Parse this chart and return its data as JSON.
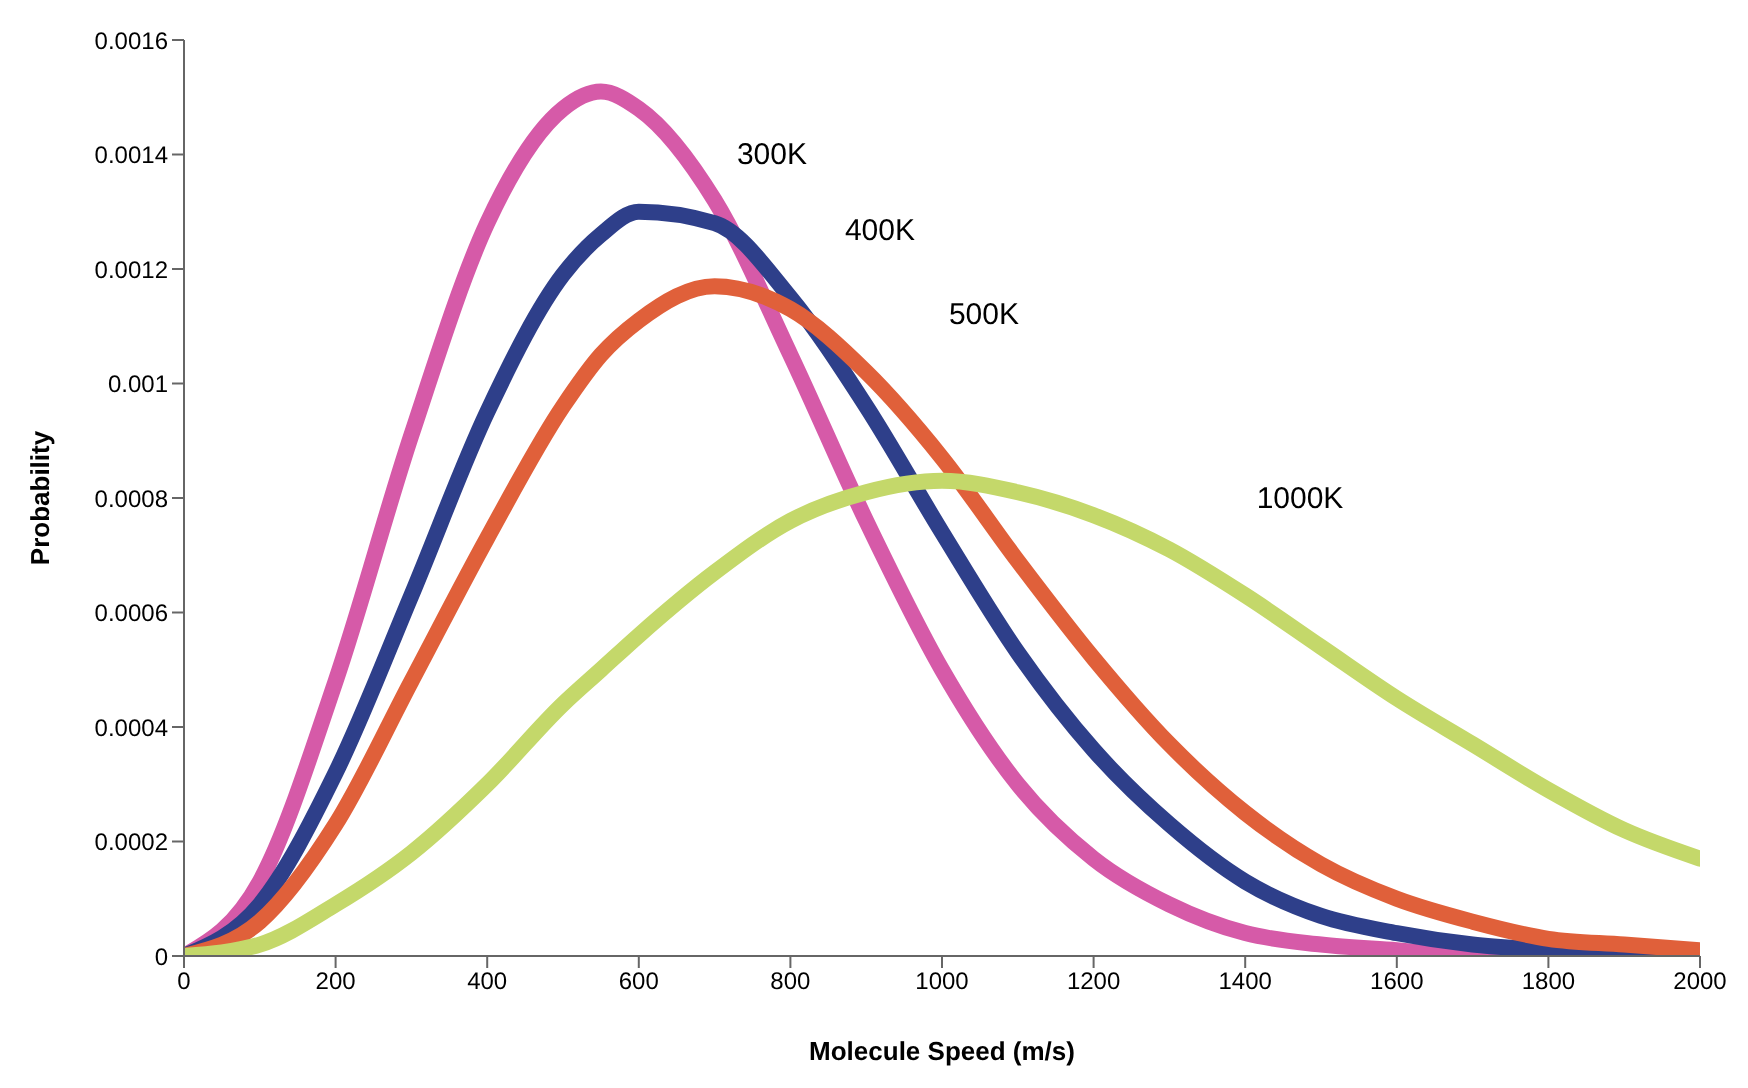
{
  "chart_data": {
    "type": "line",
    "xlabel": "Molecule Speed (m/s)",
    "ylabel": "Probability",
    "x": [
      0,
      100,
      200,
      300,
      400,
      500,
      550,
      600,
      700,
      800,
      900,
      1000,
      1100,
      1200,
      1300,
      1400,
      1500,
      1600,
      1700,
      1800,
      1900,
      2000
    ],
    "series": [
      {
        "name": "300K",
        "color": "#d65aa8",
        "values": [
          0,
          0.00013,
          0.00048,
          0.00091,
          0.00128,
          0.00148,
          0.00151,
          0.00148,
          0.00132,
          0.00105,
          0.00076,
          0.0005,
          0.0003,
          0.00017,
          9e-05,
          4e-05,
          2e-05,
          1e-05,
          0,
          0,
          null,
          null
        ]
      },
      {
        "name": "400K",
        "color": "#2e3f8a",
        "values": [
          0,
          9e-05,
          0.00032,
          0.00063,
          0.00095,
          0.00119,
          0.00126,
          0.0013,
          0.00128,
          0.00115,
          0.00096,
          0.00074,
          0.00053,
          0.00036,
          0.00023,
          0.00013,
          7e-05,
          4e-05,
          2e-05,
          1e-05,
          0,
          0
        ]
      },
      {
        "name": "500K",
        "color": "#e0603a",
        "values": [
          0,
          6e-05,
          0.00023,
          0.00048,
          0.00073,
          0.00096,
          0.00105,
          0.00111,
          0.00117,
          0.00113,
          0.00102,
          0.00087,
          0.00069,
          0.00052,
          0.00037,
          0.00025,
          0.00016,
          0.0001,
          6e-05,
          3e-05,
          2e-05,
          1e-05
        ]
      },
      {
        "name": "1000K",
        "color": "#c4d86a",
        "values": [
          0,
          2e-05,
          9e-05,
          0.00018,
          0.0003,
          0.00044,
          0.0005,
          0.00056,
          0.00067,
          0.00076,
          0.00081,
          0.00083,
          0.00081,
          0.00077,
          0.00071,
          0.00063,
          0.00054,
          0.00045,
          0.00037,
          0.00029,
          0.00022,
          0.00017
        ]
      }
    ],
    "xlim": [
      0,
      2000
    ],
    "xticks": [
      0,
      200,
      400,
      600,
      800,
      1000,
      1200,
      1400,
      1600,
      1800,
      2000
    ],
    "ylim": [
      0,
      0.0016
    ],
    "yticks": [
      0,
      0.0002,
      0.0004,
      0.0006,
      0.0008,
      0.001,
      0.0012,
      0.0014,
      0.0016
    ],
    "grid": false,
    "legend": false,
    "marker": "none",
    "line_style": "solid"
  }
}
